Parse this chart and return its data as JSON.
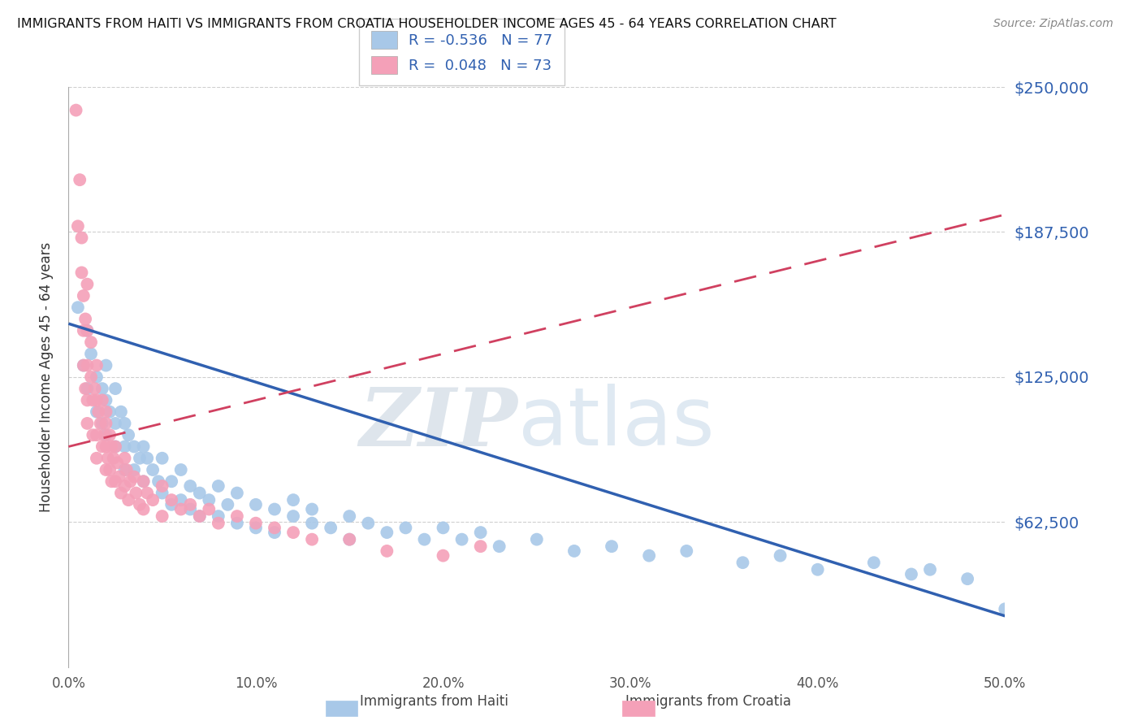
{
  "title": "IMMIGRANTS FROM HAITI VS IMMIGRANTS FROM CROATIA HOUSEHOLDER INCOME AGES 45 - 64 YEARS CORRELATION CHART",
  "source": "Source: ZipAtlas.com",
  "ylabel": "Householder Income Ages 45 - 64 years",
  "xlim": [
    0.0,
    0.5
  ],
  "ylim": [
    0,
    250000
  ],
  "yticks": [
    0,
    62500,
    125000,
    187500,
    250000
  ],
  "ytick_labels": [
    "",
    "$62,500",
    "$125,000",
    "$187,500",
    "$250,000"
  ],
  "xtick_labels": [
    "0.0%",
    "10.0%",
    "20.0%",
    "30.0%",
    "40.0%",
    "50.0%"
  ],
  "xticks": [
    0.0,
    0.1,
    0.2,
    0.3,
    0.4,
    0.5
  ],
  "haiti_color": "#a8c8e8",
  "croatia_color": "#f4a0b8",
  "haiti_R": -0.536,
  "haiti_N": 77,
  "croatia_R": 0.048,
  "croatia_N": 73,
  "legend_label_haiti": "Immigrants from Haiti",
  "legend_label_croatia": "Immigrants from Croatia",
  "trend_haiti_color": "#3060b0",
  "trend_croatia_color": "#d04060",
  "watermark_zip": "ZIP",
  "watermark_atlas": "atlas",
  "haiti_x": [
    0.005,
    0.008,
    0.01,
    0.01,
    0.012,
    0.015,
    0.015,
    0.018,
    0.018,
    0.02,
    0.02,
    0.02,
    0.022,
    0.025,
    0.025,
    0.025,
    0.028,
    0.03,
    0.03,
    0.03,
    0.032,
    0.035,
    0.035,
    0.038,
    0.04,
    0.04,
    0.042,
    0.045,
    0.048,
    0.05,
    0.05,
    0.055,
    0.055,
    0.06,
    0.06,
    0.065,
    0.065,
    0.07,
    0.07,
    0.075,
    0.08,
    0.08,
    0.085,
    0.09,
    0.09,
    0.1,
    0.1,
    0.11,
    0.11,
    0.12,
    0.12,
    0.13,
    0.13,
    0.14,
    0.15,
    0.15,
    0.16,
    0.17,
    0.18,
    0.19,
    0.2,
    0.21,
    0.22,
    0.23,
    0.25,
    0.27,
    0.29,
    0.31,
    0.33,
    0.36,
    0.38,
    0.4,
    0.43,
    0.45,
    0.46,
    0.48,
    0.5
  ],
  "haiti_y": [
    155000,
    130000,
    145000,
    120000,
    135000,
    125000,
    110000,
    120000,
    105000,
    115000,
    130000,
    100000,
    110000,
    120000,
    105000,
    95000,
    110000,
    105000,
    95000,
    85000,
    100000,
    95000,
    85000,
    90000,
    95000,
    80000,
    90000,
    85000,
    80000,
    90000,
    75000,
    80000,
    70000,
    85000,
    72000,
    78000,
    68000,
    75000,
    65000,
    72000,
    78000,
    65000,
    70000,
    75000,
    62000,
    70000,
    60000,
    68000,
    58000,
    65000,
    72000,
    62000,
    68000,
    60000,
    65000,
    55000,
    62000,
    58000,
    60000,
    55000,
    60000,
    55000,
    58000,
    52000,
    55000,
    50000,
    52000,
    48000,
    50000,
    45000,
    48000,
    42000,
    45000,
    40000,
    42000,
    38000,
    25000
  ],
  "croatia_x": [
    0.004,
    0.005,
    0.006,
    0.007,
    0.007,
    0.008,
    0.008,
    0.008,
    0.009,
    0.009,
    0.01,
    0.01,
    0.01,
    0.01,
    0.01,
    0.012,
    0.012,
    0.013,
    0.013,
    0.014,
    0.015,
    0.015,
    0.015,
    0.015,
    0.016,
    0.017,
    0.018,
    0.018,
    0.019,
    0.02,
    0.02,
    0.02,
    0.02,
    0.021,
    0.022,
    0.022,
    0.023,
    0.023,
    0.024,
    0.025,
    0.025,
    0.026,
    0.027,
    0.028,
    0.03,
    0.03,
    0.031,
    0.032,
    0.033,
    0.035,
    0.036,
    0.038,
    0.04,
    0.04,
    0.042,
    0.045,
    0.05,
    0.05,
    0.055,
    0.06,
    0.065,
    0.07,
    0.075,
    0.08,
    0.09,
    0.1,
    0.11,
    0.12,
    0.13,
    0.15,
    0.17,
    0.2,
    0.22
  ],
  "croatia_y": [
    240000,
    190000,
    210000,
    170000,
    185000,
    160000,
    145000,
    130000,
    150000,
    120000,
    165000,
    145000,
    130000,
    115000,
    105000,
    140000,
    125000,
    115000,
    100000,
    120000,
    130000,
    115000,
    100000,
    90000,
    110000,
    105000,
    115000,
    95000,
    100000,
    110000,
    95000,
    85000,
    105000,
    90000,
    100000,
    85000,
    95000,
    80000,
    90000,
    95000,
    80000,
    88000,
    82000,
    75000,
    90000,
    78000,
    85000,
    72000,
    80000,
    82000,
    75000,
    70000,
    80000,
    68000,
    75000,
    72000,
    78000,
    65000,
    72000,
    68000,
    70000,
    65000,
    68000,
    62000,
    65000,
    62000,
    60000,
    58000,
    55000,
    55000,
    50000,
    48000,
    52000
  ]
}
